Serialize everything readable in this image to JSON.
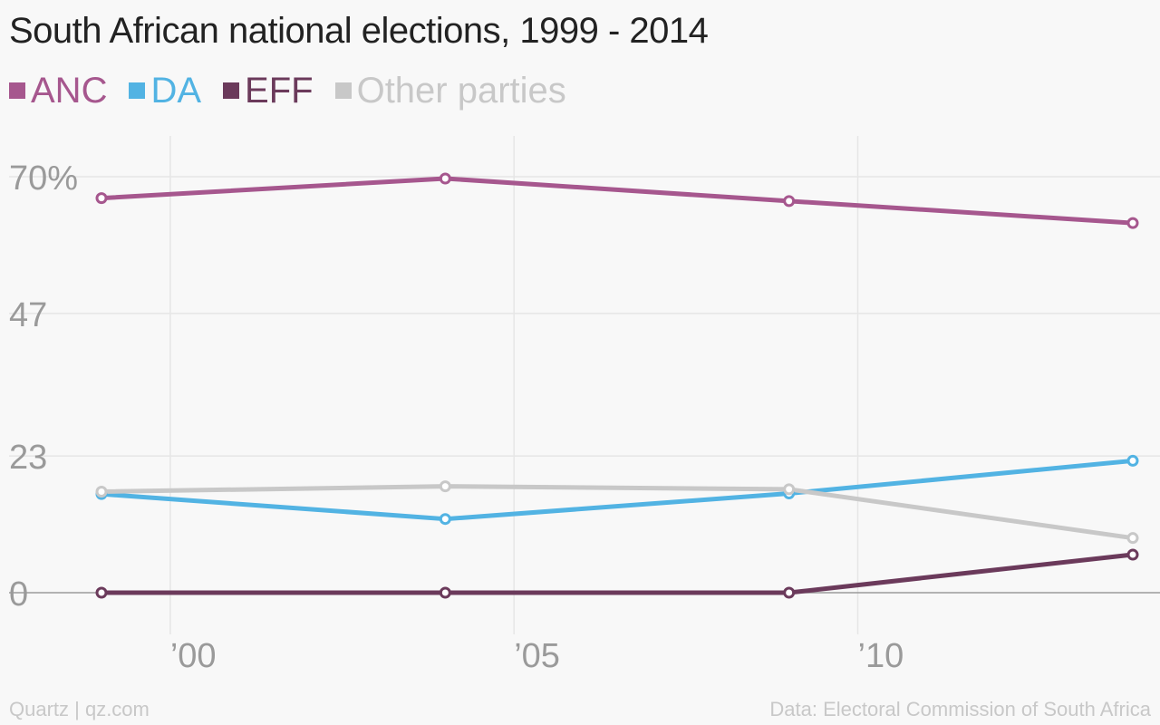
{
  "chart_data": {
    "type": "line",
    "title": "South African national elections, 1999 - 2014",
    "x": [
      1999,
      2004,
      2009,
      2014
    ],
    "ylim": [
      0,
      70
    ],
    "xlim": [
      1999,
      2014
    ],
    "y_ticks": [
      0,
      23,
      47,
      70
    ],
    "y_tick_labels": [
      "0",
      "23",
      "47",
      "70%"
    ],
    "x_ticks": [
      2000,
      2005,
      2010
    ],
    "x_tick_labels": [
      "’00",
      "’05",
      "’10"
    ],
    "grid": true,
    "legend_placement": "top-left",
    "series": [
      {
        "name": "ANC",
        "color": "#a6578e",
        "values": [
          66.4,
          69.7,
          65.9,
          62.2
        ]
      },
      {
        "name": "DA",
        "color": "#52b3e3",
        "values": [
          16.6,
          12.4,
          16.7,
          22.2
        ]
      },
      {
        "name": "EFF",
        "color": "#6b3a5b",
        "values": [
          0,
          0,
          0,
          6.4
        ]
      },
      {
        "name": "Other parties",
        "color": "#c8c8c8",
        "values": [
          17.0,
          17.9,
          17.4,
          9.2
        ]
      }
    ]
  },
  "footer": {
    "source_left": "Quartz | qz.com",
    "source_right": "Data: Electoral Commission of South Africa"
  }
}
